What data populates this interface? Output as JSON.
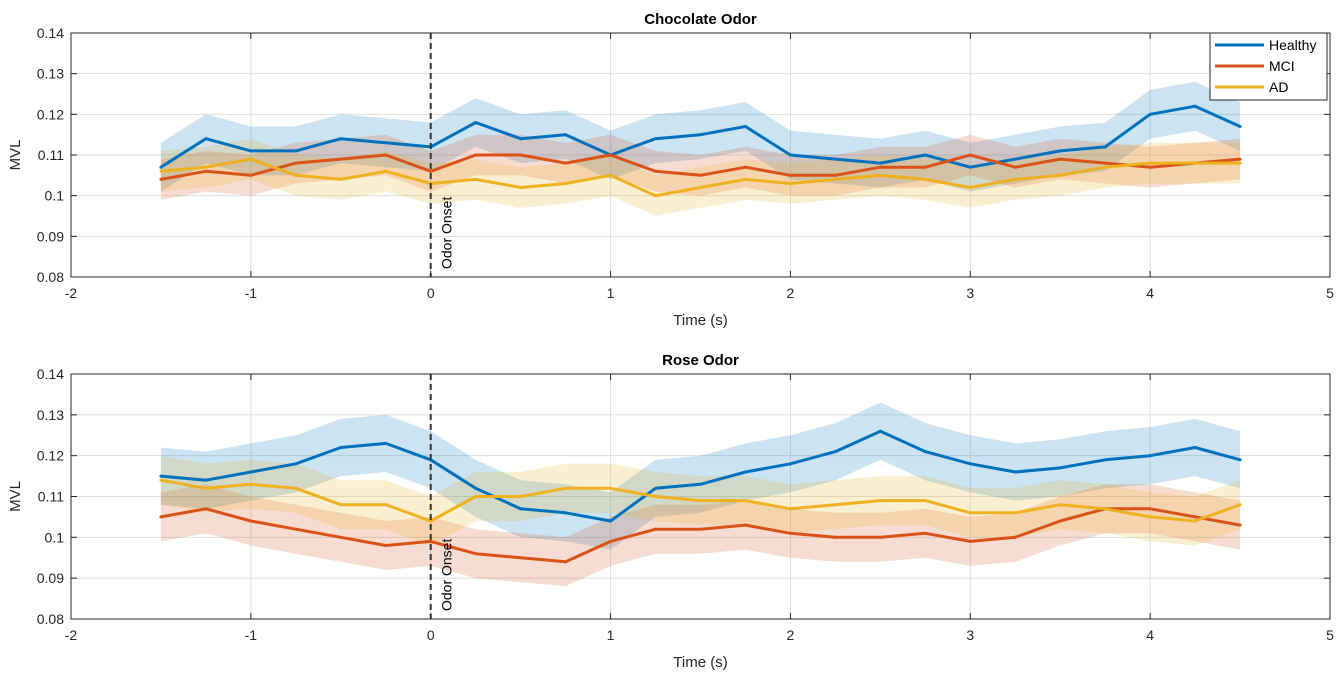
{
  "chart_data": [
    {
      "type": "line",
      "title": "Chocolate Odor",
      "xlabel": "Time (s)",
      "ylabel": "MVL",
      "xlim": [
        -2,
        5
      ],
      "ylim": [
        0.08,
        0.14
      ],
      "xticks": [
        "-2",
        "-1",
        "0",
        "1",
        "2",
        "3",
        "4",
        "5"
      ],
      "yticks": [
        "0.08",
        "0.09",
        "0.1",
        "0.11",
        "0.12",
        "0.13",
        "0.14"
      ],
      "grid": true,
      "legend": "top-right",
      "x": [
        -1.5,
        -1.25,
        -1.0,
        -0.75,
        -0.5,
        -0.25,
        0.0,
        0.25,
        0.5,
        0.75,
        1.0,
        1.25,
        1.5,
        1.75,
        2.0,
        2.25,
        2.5,
        2.75,
        3.0,
        3.25,
        3.5,
        3.75,
        4.0,
        4.25,
        4.5
      ],
      "series": [
        {
          "name": "Healthy",
          "color": "#0072BD",
          "band": 0.006,
          "values": [
            0.107,
            0.114,
            0.111,
            0.111,
            0.114,
            0.113,
            0.112,
            0.118,
            0.114,
            0.115,
            0.11,
            0.114,
            0.115,
            0.117,
            0.11,
            0.109,
            0.108,
            0.11,
            0.107,
            0.109,
            0.111,
            0.112,
            0.12,
            0.122,
            0.117
          ]
        },
        {
          "name": "MCI",
          "color": "#D95319",
          "band": 0.005,
          "values": [
            0.104,
            0.106,
            0.105,
            0.108,
            0.109,
            0.11,
            0.106,
            0.11,
            0.11,
            0.108,
            0.11,
            0.106,
            0.105,
            0.107,
            0.105,
            0.105,
            0.107,
            0.107,
            0.11,
            0.107,
            0.109,
            0.108,
            0.107,
            0.108,
            0.109
          ]
        },
        {
          "name": "AD",
          "color": "#EDB120",
          "band": 0.005,
          "values": [
            0.106,
            0.107,
            0.109,
            0.105,
            0.104,
            0.106,
            0.103,
            0.104,
            0.102,
            0.103,
            0.105,
            0.1,
            0.102,
            0.104,
            0.103,
            0.104,
            0.105,
            0.104,
            0.102,
            0.104,
            0.105,
            0.107,
            0.108,
            0.108,
            0.108
          ]
        }
      ],
      "annotations": [
        {
          "x": 0,
          "text": "Odor Onset"
        }
      ]
    },
    {
      "type": "line",
      "title": "Rose Odor",
      "xlabel": "Time (s)",
      "ylabel": "MVL",
      "xlim": [
        -2,
        5
      ],
      "ylim": [
        0.08,
        0.14
      ],
      "xticks": [
        "-2",
        "-1",
        "0",
        "1",
        "2",
        "3",
        "4",
        "5"
      ],
      "yticks": [
        "0.08",
        "0.09",
        "0.1",
        "0.11",
        "0.12",
        "0.13",
        "0.14"
      ],
      "grid": true,
      "x": [
        -1.5,
        -1.25,
        -1.0,
        -0.75,
        -0.5,
        -0.25,
        0.0,
        0.25,
        0.5,
        0.75,
        1.0,
        1.25,
        1.5,
        1.75,
        2.0,
        2.25,
        2.5,
        2.75,
        3.0,
        3.25,
        3.5,
        3.75,
        4.0,
        4.25,
        4.5
      ],
      "series": [
        {
          "name": "Healthy",
          "color": "#0072BD",
          "band": 0.007,
          "values": [
            0.115,
            0.114,
            0.116,
            0.118,
            0.122,
            0.123,
            0.119,
            0.112,
            0.107,
            0.106,
            0.104,
            0.112,
            0.113,
            0.116,
            0.118,
            0.121,
            0.126,
            0.121,
            0.118,
            0.116,
            0.117,
            0.119,
            0.12,
            0.122,
            0.119
          ]
        },
        {
          "name": "MCI",
          "color": "#D95319",
          "band": 0.006,
          "values": [
            0.105,
            0.107,
            0.104,
            0.102,
            0.1,
            0.098,
            0.099,
            0.096,
            0.095,
            0.094,
            0.099,
            0.102,
            0.102,
            0.103,
            0.101,
            0.1,
            0.1,
            0.101,
            0.099,
            0.1,
            0.104,
            0.107,
            0.107,
            0.105,
            0.103
          ]
        },
        {
          "name": "AD",
          "color": "#EDB120",
          "band": 0.006,
          "values": [
            0.114,
            0.112,
            0.113,
            0.112,
            0.108,
            0.108,
            0.104,
            0.11,
            0.11,
            0.112,
            0.112,
            0.11,
            0.109,
            0.109,
            0.107,
            0.108,
            0.109,
            0.109,
            0.106,
            0.106,
            0.108,
            0.107,
            0.105,
            0.104,
            0.108
          ]
        }
      ],
      "annotations": [
        {
          "x": 0,
          "text": "Odor Onset"
        }
      ]
    }
  ]
}
